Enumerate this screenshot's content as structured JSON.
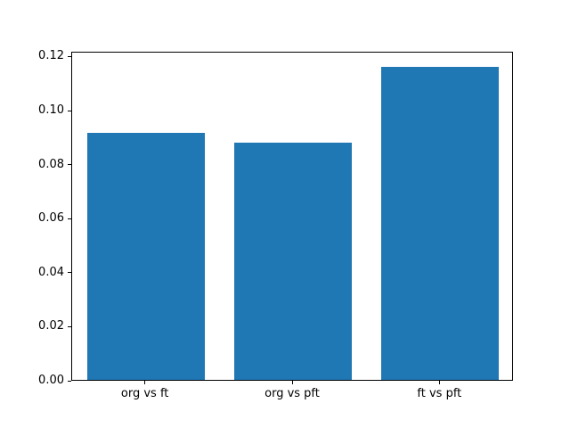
{
  "chart_data": {
    "type": "bar",
    "categories": [
      "org vs ft",
      "org vs pft",
      "ft vs pft"
    ],
    "values": [
      0.0915,
      0.0878,
      0.116
    ],
    "title": "",
    "xlabel": "",
    "ylabel": "",
    "ylim": [
      0,
      0.1218
    ],
    "yticks": [
      0.0,
      0.02,
      0.04,
      0.06,
      0.08,
      0.1,
      0.12
    ],
    "ytick_labels": [
      "0.00",
      "0.02",
      "0.04",
      "0.06",
      "0.08",
      "0.10",
      "0.12"
    ],
    "bar_color": "#1f77b4",
    "axis_color": "#000000",
    "background_color": "#ffffff",
    "grid": false,
    "legend": null,
    "bar_width_fraction": 0.8
  }
}
